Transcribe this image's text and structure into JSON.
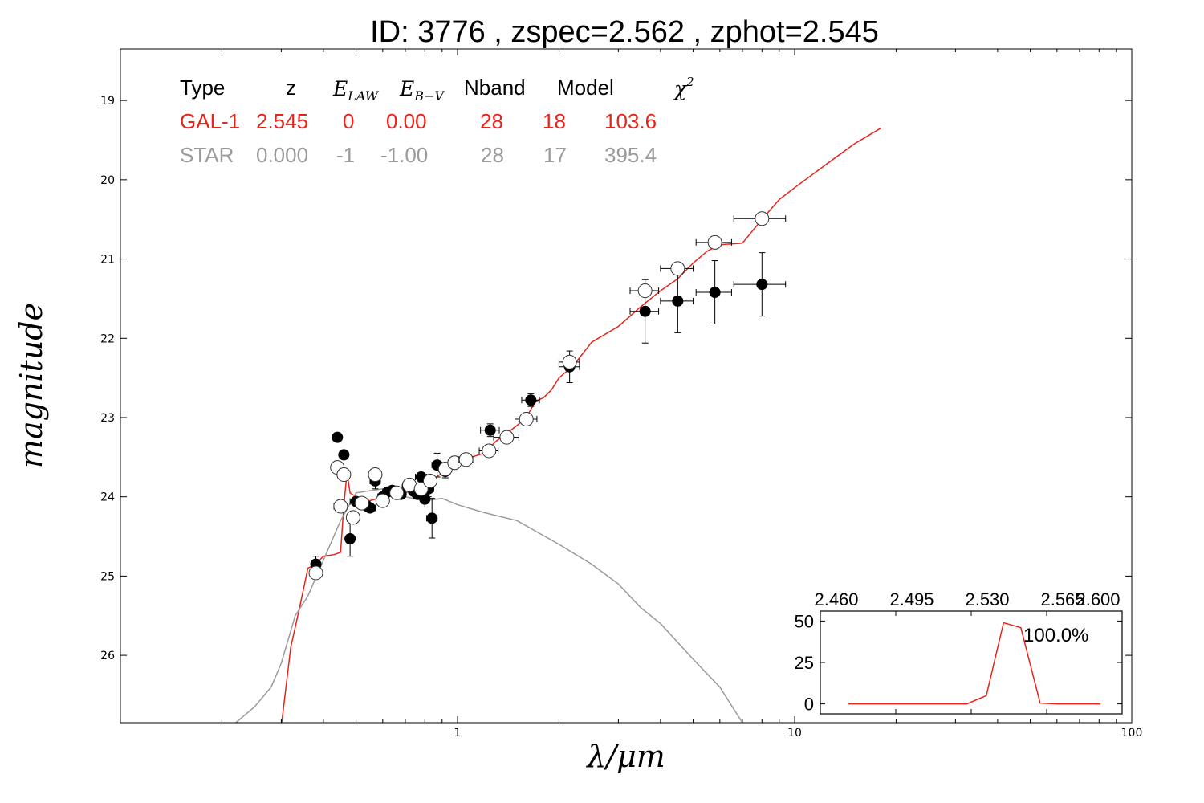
{
  "chart_data": {
    "type": "scatter",
    "title": "ID:  3776  , zspec=2.562 , zphot=2.545",
    "xlabel": "λ/μm",
    "ylabel": "magnitude",
    "xscale": "log",
    "xlim": [
      0.1,
      100
    ],
    "ylim": [
      26.85,
      18.35
    ],
    "x_ticks": [
      1,
      10,
      100
    ],
    "x_tick_labels": [
      "1",
      "10",
      "100"
    ],
    "y_ticks": [
      19,
      20,
      21,
      22,
      23,
      24,
      25,
      26
    ],
    "y_tick_labels": [
      "19",
      "20",
      "21",
      "22",
      "23",
      "24",
      "25",
      "26"
    ],
    "legend_table": {
      "headers": [
        "Type",
        "z",
        "E_LAW",
        "E_B−V",
        "Nband",
        "Model",
        "χ²"
      ],
      "rows": [
        {
          "color": "#e8231a",
          "cells": [
            "GAL-1",
            "2.545",
            "0",
            "0.00",
            "28",
            "18",
            "103.6"
          ]
        },
        {
          "color": "#9b9b9b",
          "cells": [
            "STAR",
            "0.000",
            "-1",
            "-1.00",
            "28",
            "17",
            "395.4"
          ]
        }
      ]
    },
    "series": [
      {
        "name": "GAL-1",
        "kind": "line",
        "color": "#e8231a",
        "points": [
          [
            0.3,
            26.9
          ],
          [
            0.32,
            25.9
          ],
          [
            0.34,
            25.4
          ],
          [
            0.36,
            24.9
          ],
          [
            0.38,
            24.85
          ],
          [
            0.4,
            24.75
          ],
          [
            0.43,
            24.73
          ],
          [
            0.45,
            24.7
          ],
          [
            0.46,
            24.1
          ],
          [
            0.47,
            23.7
          ],
          [
            0.48,
            23.95
          ],
          [
            0.5,
            24.0
          ],
          [
            0.55,
            24.05
          ],
          [
            0.6,
            24.0
          ],
          [
            0.7,
            23.95
          ],
          [
            0.8,
            23.85
          ],
          [
            0.9,
            23.7
          ],
          [
            1.0,
            23.6
          ],
          [
            1.1,
            23.5
          ],
          [
            1.2,
            23.45
          ],
          [
            1.3,
            23.3
          ],
          [
            1.4,
            23.2
          ],
          [
            1.5,
            23.1
          ],
          [
            1.6,
            23.0
          ],
          [
            1.7,
            22.8
          ],
          [
            1.8,
            22.75
          ],
          [
            1.9,
            22.65
          ],
          [
            2.0,
            22.5
          ],
          [
            2.2,
            22.35
          ],
          [
            2.5,
            22.05
          ],
          [
            3.0,
            21.85
          ],
          [
            3.5,
            21.6
          ],
          [
            4.0,
            21.4
          ],
          [
            4.5,
            21.25
          ],
          [
            5.0,
            21.05
          ],
          [
            5.5,
            20.9
          ],
          [
            6.0,
            20.82
          ],
          [
            7.0,
            20.8
          ],
          [
            8.0,
            20.5
          ],
          [
            9.0,
            20.25
          ],
          [
            10.0,
            20.1
          ],
          [
            12.0,
            19.85
          ],
          [
            15.0,
            19.55
          ],
          [
            18.0,
            19.35
          ]
        ]
      },
      {
        "name": "STAR",
        "kind": "line",
        "color": "#9b9b9b",
        "points": [
          [
            0.2,
            27.0
          ],
          [
            0.22,
            26.85
          ],
          [
            0.25,
            26.65
          ],
          [
            0.28,
            26.4
          ],
          [
            0.3,
            26.1
          ],
          [
            0.33,
            25.5
          ],
          [
            0.36,
            25.25
          ],
          [
            0.4,
            24.8
          ],
          [
            0.45,
            24.3
          ],
          [
            0.5,
            23.95
          ],
          [
            0.6,
            23.9
          ],
          [
            0.7,
            24.0
          ],
          [
            0.8,
            24.05
          ],
          [
            0.9,
            24.02
          ],
          [
            1.0,
            24.1
          ],
          [
            1.2,
            24.2
          ],
          [
            1.5,
            24.3
          ],
          [
            2.0,
            24.6
          ],
          [
            2.5,
            24.85
          ],
          [
            3.0,
            25.1
          ],
          [
            3.5,
            25.4
          ],
          [
            4.0,
            25.6
          ],
          [
            5.0,
            26.05
          ],
          [
            6.0,
            26.4
          ],
          [
            7.0,
            26.85
          ]
        ]
      },
      {
        "name": "observed",
        "kind": "points",
        "marker": "filled",
        "points": [
          {
            "x": 0.38,
            "y": 24.85,
            "xerr": 0.01,
            "yerr": 0.1
          },
          {
            "x": 0.44,
            "y": 23.25,
            "xerr": 0.01,
            "yerr": 0.05
          },
          {
            "x": 0.46,
            "y": 23.47,
            "xerr": 0.01,
            "yerr": 0.05
          },
          {
            "x": 0.48,
            "y": 24.53,
            "xerr": 0.01,
            "yerr": 0.22
          },
          {
            "x": 0.5,
            "y": 24.06,
            "xerr": 0.02,
            "yerr": 0.05
          },
          {
            "x": 0.52,
            "y": 24.1,
            "xerr": 0.02,
            "yerr": 0.05
          },
          {
            "x": 0.54,
            "y": 24.12,
            "xerr": 0.02,
            "yerr": 0.05
          },
          {
            "x": 0.55,
            "y": 24.14,
            "xerr": 0.02,
            "yerr": 0.05
          },
          {
            "x": 0.57,
            "y": 23.8,
            "xerr": 0.02,
            "yerr": 0.1
          },
          {
            "x": 0.6,
            "y": 24.0,
            "xerr": 0.02,
            "yerr": 0.05
          },
          {
            "x": 0.62,
            "y": 23.94,
            "xerr": 0.02,
            "yerr": 0.05
          },
          {
            "x": 0.64,
            "y": 23.92,
            "xerr": 0.02,
            "yerr": 0.05
          },
          {
            "x": 0.66,
            "y": 23.95,
            "xerr": 0.02,
            "yerr": 0.05
          },
          {
            "x": 0.68,
            "y": 23.97,
            "xerr": 0.02,
            "yerr": 0.05
          },
          {
            "x": 0.71,
            "y": 23.86,
            "xerr": 0.02,
            "yerr": 0.05
          },
          {
            "x": 0.74,
            "y": 23.93,
            "xerr": 0.02,
            "yerr": 0.05
          },
          {
            "x": 0.76,
            "y": 23.97,
            "xerr": 0.02,
            "yerr": 0.05
          },
          {
            "x": 0.78,
            "y": 23.75,
            "xerr": 0.03,
            "yerr": 0.05
          },
          {
            "x": 0.8,
            "y": 24.03,
            "xerr": 0.02,
            "yerr": 0.1
          },
          {
            "x": 0.82,
            "y": 23.9,
            "xerr": 0.03,
            "yerr": 0.1
          },
          {
            "x": 0.84,
            "y": 24.27,
            "xerr": 0.03,
            "yerr": 0.25
          },
          {
            "x": 0.87,
            "y": 23.6,
            "xerr": 0.03,
            "yerr": 0.15
          },
          {
            "x": 0.92,
            "y": 23.68,
            "xerr": 0.03,
            "yerr": 0.08
          },
          {
            "x": 1.25,
            "y": 23.16,
            "xerr": 0.08,
            "yerr": 0.08
          },
          {
            "x": 1.65,
            "y": 22.78,
            "xerr": 0.1,
            "yerr": 0.08
          },
          {
            "x": 2.15,
            "y": 22.36,
            "xerr": 0.15,
            "yerr": 0.2
          },
          {
            "x": 3.6,
            "y": 21.66,
            "xerr": 0.35,
            "yerr": 0.4
          },
          {
            "x": 4.5,
            "y": 21.53,
            "xerr": 0.5,
            "yerr": 0.4
          },
          {
            "x": 5.8,
            "y": 21.42,
            "xerr": 0.7,
            "yerr": 0.4
          },
          {
            "x": 8.0,
            "y": 21.32,
            "xerr": 1.4,
            "yerr": 0.4
          }
        ]
      },
      {
        "name": "model",
        "kind": "points",
        "marker": "open",
        "points": [
          {
            "x": 0.38,
            "y": 24.96,
            "xerr": 0.01
          },
          {
            "x": 0.44,
            "y": 23.63,
            "xerr": 0.01
          },
          {
            "x": 0.45,
            "y": 24.12,
            "xerr": 0.02
          },
          {
            "x": 0.46,
            "y": 23.72,
            "xerr": 0.01
          },
          {
            "x": 0.49,
            "y": 24.26,
            "xerr": 0.02
          },
          {
            "x": 0.52,
            "y": 24.08,
            "xerr": 0.02
          },
          {
            "x": 0.57,
            "y": 23.72,
            "xerr": 0.02
          },
          {
            "x": 0.6,
            "y": 24.05,
            "xerr": 0.02
          },
          {
            "x": 0.66,
            "y": 23.95,
            "xerr": 0.02
          },
          {
            "x": 0.72,
            "y": 23.85,
            "xerr": 0.03
          },
          {
            "x": 0.78,
            "y": 23.9,
            "xerr": 0.03
          },
          {
            "x": 0.83,
            "y": 23.8,
            "xerr": 0.03
          },
          {
            "x": 0.92,
            "y": 23.65,
            "xerr": 0.04
          },
          {
            "x": 0.98,
            "y": 23.57,
            "xerr": 0.04
          },
          {
            "x": 1.06,
            "y": 23.53,
            "xerr": 0.05
          },
          {
            "x": 1.24,
            "y": 23.42,
            "xerr": 0.08
          },
          {
            "x": 1.4,
            "y": 23.25,
            "xerr": 0.12
          },
          {
            "x": 1.6,
            "y": 23.02,
            "xerr": 0.12
          },
          {
            "x": 2.15,
            "y": 22.3,
            "xerr": 0.15
          },
          {
            "x": 3.6,
            "y": 21.4,
            "xerr": 0.35
          },
          {
            "x": 4.5,
            "y": 21.12,
            "xerr": 0.5
          },
          {
            "x": 5.8,
            "y": 20.79,
            "xerr": 0.7
          },
          {
            "x": 8.0,
            "y": 20.49,
            "xerr": 1.4
          }
        ]
      }
    ],
    "inset": {
      "type": "line",
      "color": "#e8231a",
      "xlim": [
        2.46,
        2.6
      ],
      "ylim": [
        -6,
        56
      ],
      "x_tick_labels": [
        "2.460",
        "2.495",
        "2.530",
        "2.565",
        "2.600"
      ],
      "y_tick_labels": [
        "0",
        "25",
        "50"
      ],
      "y_ticks": [
        0,
        25,
        50
      ],
      "annotation": "100.0%",
      "x": [
        2.473,
        2.48,
        2.49,
        2.5,
        2.51,
        2.52,
        2.528,
        2.537,
        2.545,
        2.553,
        2.562,
        2.57,
        2.58,
        2.59
      ],
      "values": [
        0,
        0,
        0,
        0,
        0,
        0,
        0,
        5,
        49,
        46,
        0.5,
        0,
        0,
        0
      ]
    }
  }
}
